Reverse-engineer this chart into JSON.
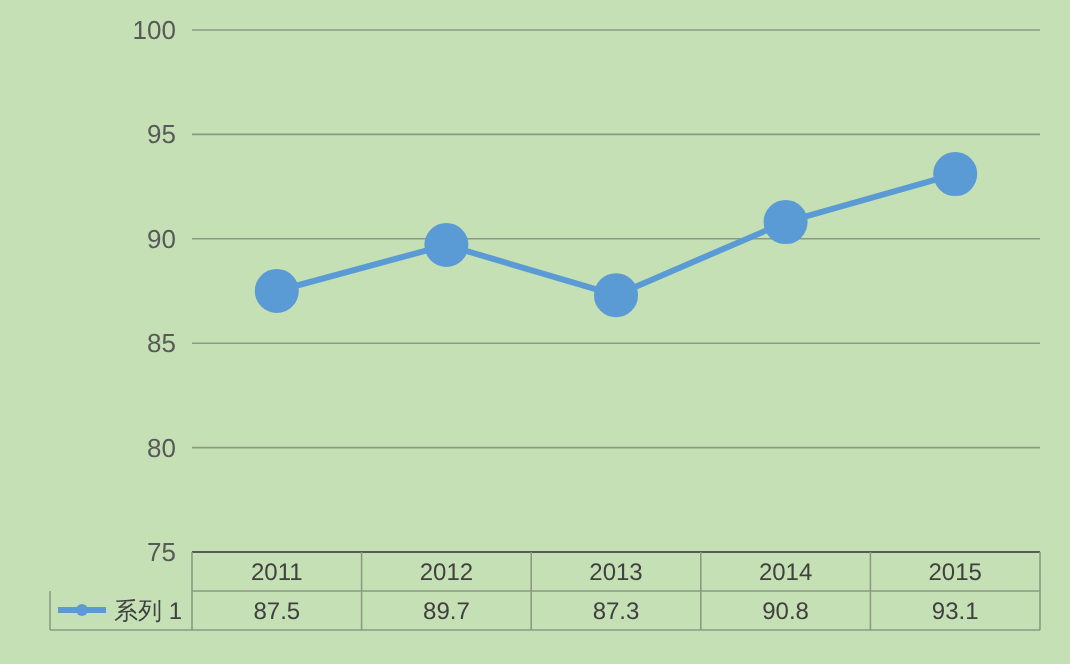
{
  "chart_data": {
    "type": "line",
    "categories": [
      "2011",
      "2012",
      "2013",
      "2014",
      "2015"
    ],
    "series": [
      {
        "name": "系列 1",
        "color": "#5b9bd5",
        "values": [
          87.5,
          89.7,
          87.3,
          90.8,
          93.1
        ]
      }
    ],
    "ylim": [
      75,
      100
    ],
    "yticks": [
      75,
      80,
      85,
      90,
      95,
      100
    ],
    "grid": "y",
    "legend": "bottom left",
    "marker": "circle",
    "line_style": "solid",
    "data_labels": true
  }
}
